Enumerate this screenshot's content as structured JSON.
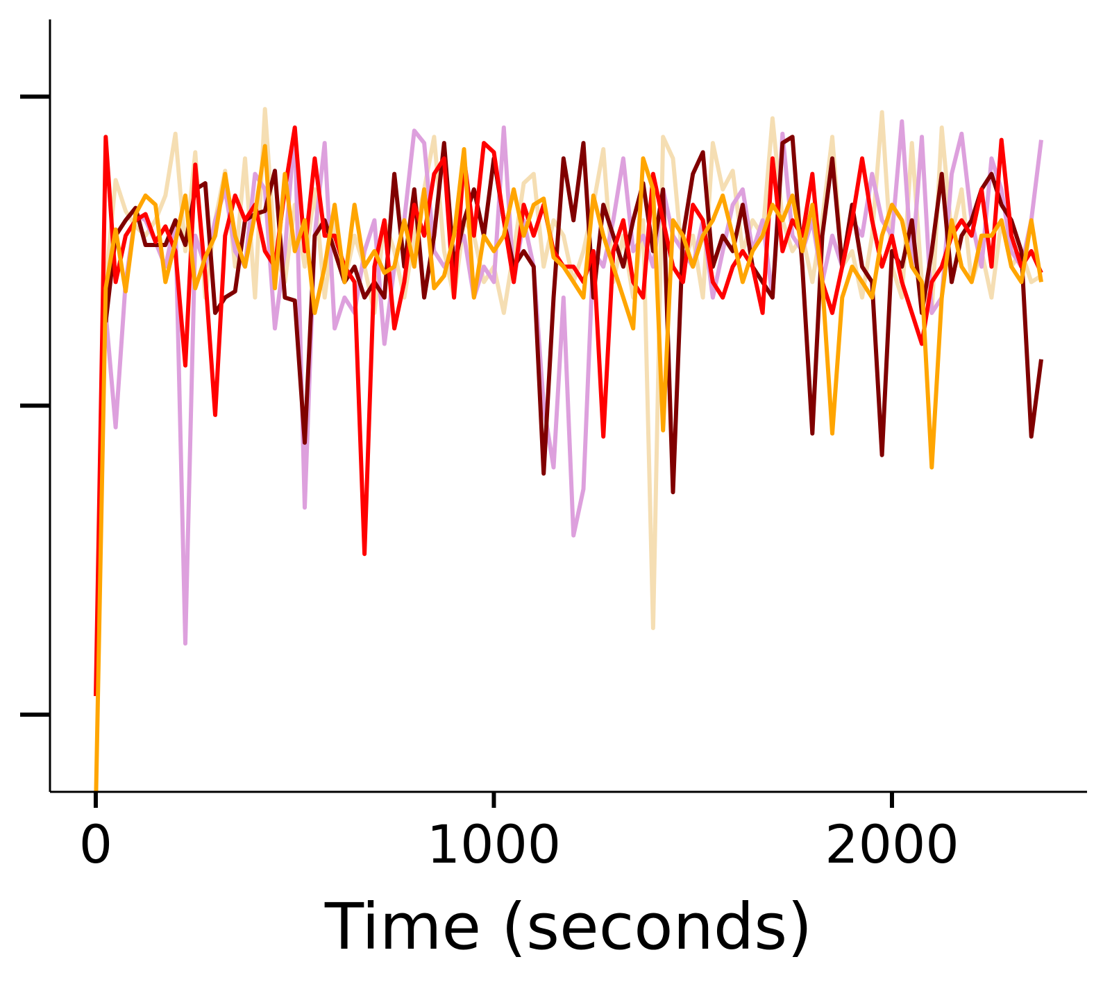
{
  "chart_data": {
    "type": "line",
    "title": "",
    "xlabel": "Time (seconds)",
    "ylabel": "",
    "xlim": [
      -115,
      2490
    ],
    "ylim": [
      -0.25,
      2.25
    ],
    "x_ticks": [
      0,
      1000,
      2000
    ],
    "x_tick_labels": [
      "0",
      "1000",
      "2000"
    ],
    "y_ticks": [
      0,
      1,
      2
    ],
    "y_tick_labels": [
      "",
      "",
      ""
    ],
    "grid": false,
    "legend": "none",
    "x": [
      0,
      25,
      50,
      75,
      100,
      125,
      150,
      175,
      200,
      225,
      250,
      275,
      300,
      325,
      350,
      375,
      400,
      425,
      450,
      475,
      500,
      525,
      550,
      575,
      600,
      625,
      650,
      675,
      700,
      725,
      750,
      775,
      800,
      825,
      850,
      875,
      900,
      925,
      950,
      975,
      1000,
      1025,
      1050,
      1075,
      1100,
      1125,
      1150,
      1175,
      1200,
      1225,
      1250,
      1275,
      1300,
      1325,
      1350,
      1375,
      1400,
      1425,
      1450,
      1475,
      1500,
      1525,
      1550,
      1575,
      1600,
      1625,
      1650,
      1675,
      1700,
      1725,
      1750,
      1775,
      1800,
      1825,
      1850,
      1875,
      1900,
      1925,
      1950,
      1975,
      2000,
      2025,
      2050,
      2075,
      2100,
      2125,
      2150,
      2175,
      2200,
      2225,
      2250,
      2275,
      2300,
      2325,
      2350,
      2375
    ],
    "series": [
      {
        "color": "#f5deb3",
        "values": [
          null,
          1.4,
          1.73,
          1.63,
          1.58,
          1.55,
          1.6,
          1.68,
          1.88,
          1.5,
          1.82,
          1.35,
          1.6,
          1.76,
          1.45,
          1.8,
          1.35,
          1.96,
          1.5,
          1.4,
          1.65,
          1.45,
          1.7,
          1.35,
          1.6,
          1.4,
          1.55,
          1.45,
          1.3,
          1.6,
          1.5,
          1.35,
          1.55,
          1.7,
          1.87,
          1.5,
          1.35,
          1.6,
          1.55,
          1.4,
          1.45,
          1.3,
          1.5,
          1.72,
          1.75,
          1.45,
          1.6,
          1.55,
          1.4,
          1.5,
          1.65,
          1.83,
          1.4,
          1.55,
          1.35,
          1.6,
          0.28,
          1.87,
          1.8,
          1.45,
          1.55,
          1.35,
          1.85,
          1.7,
          1.76,
          1.5,
          1.6,
          1.55,
          1.93,
          1.6,
          1.5,
          1.55,
          1.4,
          1.6,
          1.87,
          1.45,
          1.5,
          1.35,
          1.55,
          1.95,
          1.45,
          1.35,
          1.85,
          1.4,
          1.3,
          1.9,
          1.55,
          1.7,
          1.4,
          1.5,
          1.35,
          1.6,
          1.45,
          1.5,
          1.4,
          1.42
        ]
      },
      {
        "color": "#dda0dd",
        "values": [
          null,
          1.3,
          0.93,
          1.4,
          1.62,
          1.6,
          1.53,
          1.45,
          1.6,
          0.23,
          1.55,
          1.45,
          1.6,
          1.7,
          1.5,
          1.45,
          1.75,
          1.7,
          1.25,
          1.5,
          1.9,
          0.67,
          1.55,
          1.85,
          1.25,
          1.35,
          1.3,
          1.5,
          1.6,
          1.2,
          1.45,
          1.6,
          1.89,
          1.85,
          1.5,
          1.45,
          1.5,
          1.55,
          1.35,
          1.45,
          1.4,
          1.9,
          1.4,
          1.6,
          1.45,
          1.0,
          0.8,
          1.35,
          0.58,
          0.73,
          1.5,
          1.45,
          1.6,
          1.8,
          1.5,
          1.55,
          1.45,
          1.7,
          1.55,
          1.5,
          1.45,
          1.6,
          1.35,
          1.5,
          1.65,
          1.7,
          1.5,
          1.6,
          1.35,
          1.88,
          1.55,
          1.5,
          1.6,
          1.4,
          1.55,
          1.45,
          1.6,
          1.55,
          1.75,
          1.6,
          1.55,
          1.92,
          1.45,
          1.87,
          1.3,
          1.35,
          1.75,
          1.88,
          1.6,
          1.45,
          1.8,
          1.7,
          1.5,
          1.45,
          1.6,
          1.86
        ]
      },
      {
        "color": "#800000",
        "values": [
          null,
          1.27,
          1.55,
          1.6,
          1.64,
          1.52,
          1.52,
          1.52,
          1.6,
          1.52,
          1.7,
          1.72,
          1.3,
          1.35,
          1.37,
          1.6,
          1.62,
          1.63,
          1.76,
          1.35,
          1.34,
          0.88,
          1.55,
          1.6,
          1.5,
          1.4,
          1.45,
          1.35,
          1.4,
          1.35,
          1.75,
          1.45,
          1.7,
          1.35,
          1.55,
          1.85,
          1.45,
          1.6,
          1.7,
          1.55,
          1.8,
          1.6,
          1.45,
          1.5,
          1.45,
          0.78,
          1.35,
          1.8,
          1.6,
          1.85,
          1.35,
          1.65,
          1.55,
          1.45,
          1.6,
          1.72,
          1.5,
          1.7,
          0.72,
          1.55,
          1.75,
          1.82,
          1.45,
          1.55,
          1.5,
          1.65,
          1.45,
          1.4,
          1.35,
          1.85,
          1.87,
          1.45,
          0.91,
          1.55,
          1.8,
          1.45,
          1.65,
          1.45,
          1.4,
          0.84,
          1.5,
          1.45,
          1.6,
          1.3,
          1.5,
          1.75,
          1.4,
          1.55,
          1.6,
          1.7,
          1.75,
          1.65,
          1.6,
          1.5,
          0.9,
          1.15
        ]
      },
      {
        "color": "#ff0000",
        "values": [
          0.06,
          1.87,
          1.4,
          1.55,
          1.6,
          1.62,
          1.53,
          1.58,
          1.5,
          1.13,
          1.78,
          1.42,
          0.97,
          1.55,
          1.68,
          1.6,
          1.65,
          1.5,
          1.45,
          1.7,
          1.9,
          1.5,
          1.8,
          1.55,
          1.55,
          1.45,
          1.4,
          0.52,
          1.45,
          1.6,
          1.25,
          1.4,
          1.65,
          1.55,
          1.75,
          1.8,
          1.35,
          1.8,
          1.55,
          1.85,
          1.82,
          1.6,
          1.4,
          1.65,
          1.55,
          1.65,
          1.5,
          1.45,
          1.45,
          1.4,
          1.5,
          0.9,
          1.5,
          1.6,
          1.4,
          1.35,
          1.75,
          1.6,
          1.45,
          1.4,
          1.65,
          1.6,
          1.4,
          1.35,
          1.45,
          1.5,
          1.45,
          1.3,
          1.8,
          1.5,
          1.6,
          1.55,
          1.75,
          1.4,
          1.3,
          1.45,
          1.6,
          1.8,
          1.6,
          1.45,
          1.55,
          1.4,
          1.3,
          1.2,
          1.4,
          1.45,
          1.55,
          1.6,
          1.55,
          1.7,
          1.45,
          1.86,
          1.55,
          1.45,
          1.5,
          1.43
        ]
      },
      {
        "color": "#ffa500",
        "values": [
          -0.3,
          1.38,
          1.57,
          1.37,
          1.62,
          1.68,
          1.65,
          1.4,
          1.53,
          1.68,
          1.38,
          1.48,
          1.55,
          1.75,
          1.55,
          1.45,
          1.62,
          1.84,
          1.38,
          1.75,
          1.5,
          1.6,
          1.3,
          1.45,
          1.65,
          1.4,
          1.65,
          1.45,
          1.5,
          1.43,
          1.45,
          1.6,
          1.45,
          1.7,
          1.38,
          1.42,
          1.55,
          1.83,
          1.35,
          1.55,
          1.5,
          1.55,
          1.7,
          1.55,
          1.65,
          1.67,
          1.48,
          1.45,
          1.4,
          1.35,
          1.68,
          1.55,
          1.45,
          1.35,
          1.25,
          1.8,
          1.7,
          0.92,
          1.6,
          1.55,
          1.45,
          1.55,
          1.6,
          1.68,
          1.55,
          1.4,
          1.5,
          1.55,
          1.65,
          1.6,
          1.68,
          1.5,
          1.65,
          1.4,
          0.91,
          1.35,
          1.45,
          1.4,
          1.35,
          1.55,
          1.65,
          1.6,
          1.45,
          1.4,
          0.8,
          1.35,
          1.6,
          1.45,
          1.4,
          1.55,
          1.55,
          1.6,
          1.45,
          1.4,
          1.6,
          1.4
        ]
      }
    ]
  }
}
